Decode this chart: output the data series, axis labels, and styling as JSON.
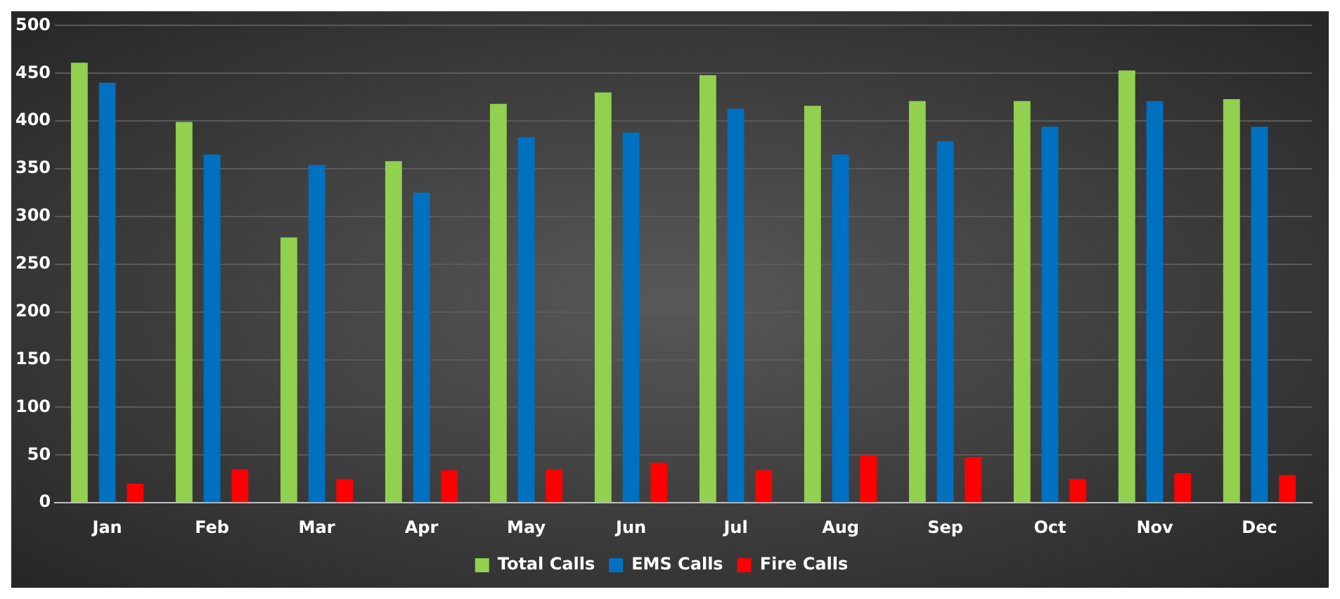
{
  "chart_data": {
    "type": "bar",
    "categories": [
      "Jan",
      "Feb",
      "Mar",
      "Apr",
      "May",
      "Jun",
      "Jul",
      "Aug",
      "Sep",
      "Oct",
      "Nov",
      "Dec"
    ],
    "series": [
      {
        "name": "Total Calls",
        "color": "#92d050",
        "values": [
          461,
          399,
          278,
          358,
          418,
          430,
          448,
          416,
          421,
          421,
          453,
          423
        ]
      },
      {
        "name": "EMS Calls",
        "color": "#0070c0",
        "values": [
          440,
          365,
          354,
          325,
          383,
          388,
          413,
          365,
          379,
          394,
          421,
          394
        ]
      },
      {
        "name": "Fire Calls",
        "color": "#ff0000",
        "values": [
          20,
          35,
          25,
          34,
          35,
          42,
          34,
          50,
          48,
          25,
          31,
          29
        ]
      }
    ],
    "ylim": [
      0,
      500
    ],
    "yticks": [
      0,
      50,
      100,
      150,
      200,
      250,
      300,
      350,
      400,
      450,
      500
    ],
    "grid": "y",
    "legend": "bottom"
  }
}
